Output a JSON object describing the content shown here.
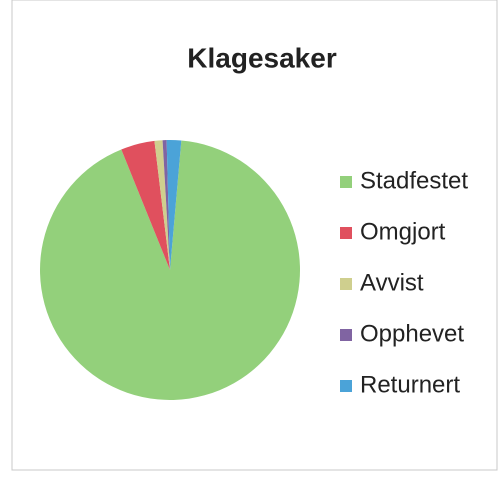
{
  "chart_data": {
    "type": "pie",
    "title": "Klagesaker",
    "categories": [
      "Stadfestet",
      "Omgjort",
      "Avvist",
      "Opphevet",
      "Returnert"
    ],
    "values": [
      92.5,
      4.2,
      1,
      0.5,
      1.8
    ],
    "colors": [
      "#93d07b",
      "#e0505e",
      "#cfcf8e",
      "#8064a2",
      "#4ba3d8"
    ],
    "legend": "right"
  }
}
